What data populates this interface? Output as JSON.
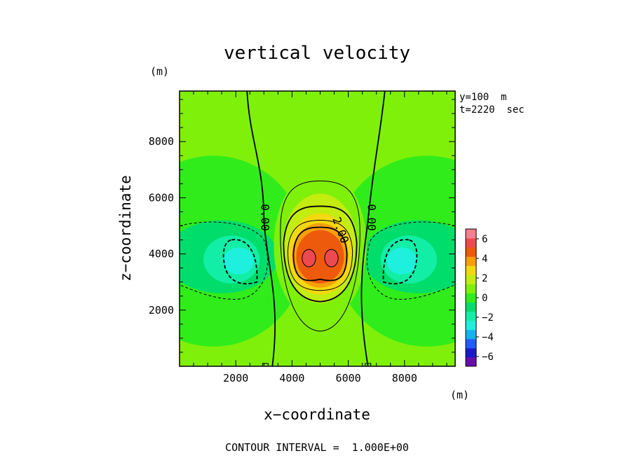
{
  "chart_data": {
    "type": "heatmap",
    "title": "vertical velocity",
    "xlabel": "x−coordinate",
    "ylabel": "z−coordinate",
    "x_unit": "(m)",
    "y_unit": "(m)",
    "xlim": [
      0,
      9800
    ],
    "ylim": [
      0,
      9800
    ],
    "x_ticks": [
      "2000",
      "4000",
      "6000",
      "8000"
    ],
    "y_ticks": [
      "2000",
      "4000",
      "6000",
      "8000"
    ],
    "annotations": [
      "y=100  m",
      "t=2220  sec"
    ],
    "contour_labels": [
      "0.00",
      "0.00",
      "2.00"
    ],
    "contour_interval": 1.0,
    "colorbar": {
      "levels": [
        -7,
        -6,
        -5,
        -4,
        -3,
        -2,
        -1,
        0,
        1,
        2,
        3,
        4,
        5,
        6,
        7
      ],
      "tick_labels": [
        "6",
        "4",
        "2",
        "0",
        "−2",
        "−4",
        "−6"
      ],
      "colors": [
        "#6a0dad",
        "#1a1acd",
        "#1f5cff",
        "#13b3ee",
        "#1ef0dd",
        "#13eea6",
        "#00dd6a",
        "#31ec1b",
        "#7ff00a",
        "#c3ec10",
        "#f2d90f",
        "#f5a00b",
        "#ee5a0c",
        "#ec4a4f",
        "#f57f8e"
      ]
    },
    "features": [
      {
        "type": "updraft_max",
        "x": 5000,
        "z": 3900,
        "value": 6.3
      },
      {
        "type": "downdraft_min",
        "x": 1800,
        "z": 3700,
        "value": -2.6
      },
      {
        "type": "downdraft_min",
        "x": 8200,
        "z": 3700,
        "value": -2.6
      }
    ]
  },
  "footer": "CONTOUR INTERVAL =  1.000E+00"
}
